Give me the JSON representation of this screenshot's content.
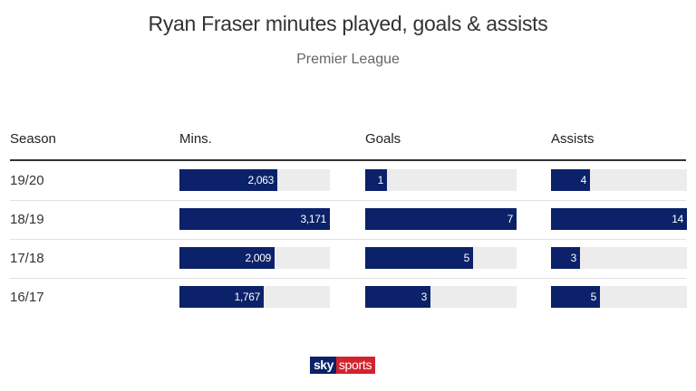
{
  "chart_data": {
    "type": "table",
    "title": "Ryan Fraser minutes played, goals & assists",
    "subtitle": "Premier League",
    "columns": [
      "Season",
      "Mins.",
      "Goals",
      "Assists"
    ],
    "rows": [
      {
        "season": "19/20",
        "mins": 2063,
        "mins_label": "2,063",
        "goals": 1,
        "goals_label": "1",
        "assists": 4,
        "assists_label": "4"
      },
      {
        "season": "18/19",
        "mins": 3171,
        "mins_label": "3,171",
        "goals": 7,
        "goals_label": "7",
        "assists": 14,
        "assists_label": "14"
      },
      {
        "season": "17/18",
        "mins": 2009,
        "mins_label": "2,009",
        "goals": 5,
        "goals_label": "5",
        "assists": 3,
        "assists_label": "3"
      },
      {
        "season": "16/17",
        "mins": 1767,
        "mins_label": "1,767",
        "goals": 3,
        "goals_label": "3",
        "assists": 5,
        "assists_label": "5"
      }
    ],
    "scale_max": {
      "mins": 3171,
      "goals": 7,
      "assists": 14
    }
  },
  "colors": {
    "bar": "#0b2169",
    "track": "#ececec",
    "brand_red": "#d3232e"
  },
  "logo": {
    "sky": "sky",
    "sports": "sports"
  }
}
